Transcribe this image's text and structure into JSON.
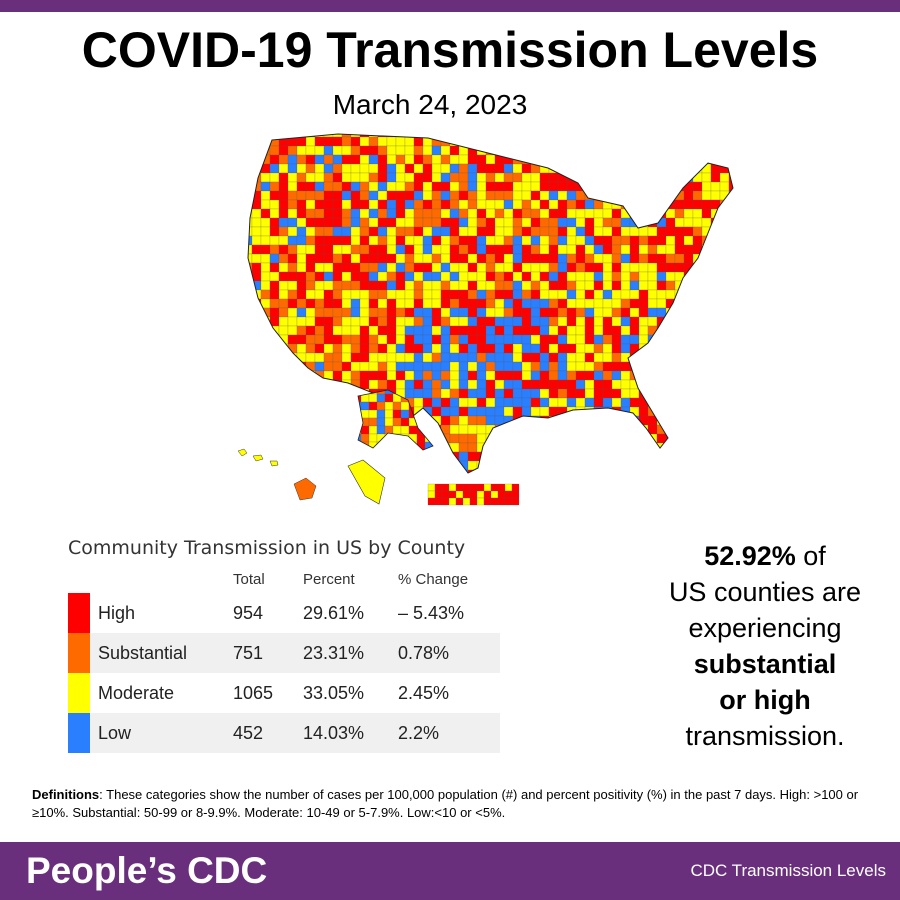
{
  "header": {
    "title": "COVID-19 Transmission Levels",
    "date": "March 24, 2023"
  },
  "colors": {
    "high": "#ff0000",
    "substantial": "#ff6a00",
    "moderate": "#ffff00",
    "low": "#2a7fff",
    "brand_purple": "#6a2f7c"
  },
  "table": {
    "title": "Community Transmission in US by County",
    "columns": [
      "Total",
      "Percent",
      "% Change"
    ],
    "rows": [
      {
        "label": "High",
        "total": "954",
        "percent": "29.61%",
        "change": "– 5.43%"
      },
      {
        "label": "Substantial",
        "total": "751",
        "percent": "23.31%",
        "change": "0.78%"
      },
      {
        "label": "Moderate",
        "total": "1065",
        "percent": "33.05%",
        "change": "2.45%"
      },
      {
        "label": "Low",
        "total": "452",
        "percent": "14.03%",
        "change": "2.2%"
      }
    ]
  },
  "stat": {
    "value": "52.92%",
    "line1_rest": " of",
    "line2": "US counties are",
    "line3": "experiencing",
    "line4": "substantial",
    "line5": "or high",
    "line6": "transmission."
  },
  "definitions": {
    "label": "Definitions",
    "text": ": These categories show the number of cases per 100,000 population (#) and percent positivity (%) in the past 7 days. High: >100  or ≥10%. Substantial: 50-99 or 8-9.9%. Moderate: 10-49 or 5-7.9%. Low:<10 or <5%."
  },
  "footer": {
    "brand": "People’s CDC",
    "source": "CDC Transmission Levels"
  }
}
